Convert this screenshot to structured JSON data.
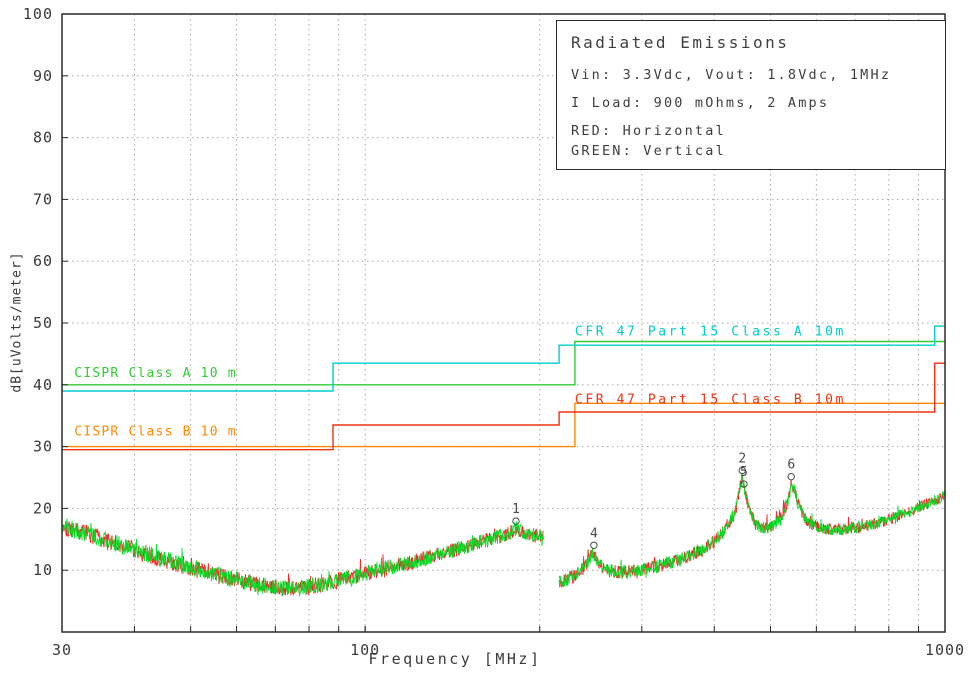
{
  "chart_data": {
    "type": "line",
    "title": "Radiated Emissions",
    "xlabel": "Frequency [MHz]",
    "ylabel": "dB[uVolts/meter]",
    "x_scale": "log",
    "xlim": [
      30,
      1000
    ],
    "ylim": [
      0,
      100
    ],
    "x_major_ticks": [
      {
        "value": 30,
        "label": "30"
      },
      {
        "value": 100,
        "label": "100"
      },
      {
        "value": 1000,
        "label": "1000"
      }
    ],
    "x_grid": [
      40,
      50,
      60,
      70,
      80,
      90,
      100,
      200,
      300,
      400,
      500,
      600,
      700,
      800,
      900
    ],
    "y_ticks": [
      {
        "value": 10,
        "label": "10"
      },
      {
        "value": 20,
        "label": "20"
      },
      {
        "value": 30,
        "label": "30"
      },
      {
        "value": 40,
        "label": "40"
      },
      {
        "value": 50,
        "label": "50"
      },
      {
        "value": 60,
        "label": "60"
      },
      {
        "value": 70,
        "label": "70"
      },
      {
        "value": 80,
        "label": "80"
      },
      {
        "value": 90,
        "label": "90"
      },
      {
        "value": 100,
        "label": "100"
      }
    ],
    "grid_on": true,
    "colors": {
      "grid": "#a8a8a8",
      "axis": "#2a2a2a",
      "text": "#3a3a3a"
    },
    "info_box": {
      "title": "Radiated Emissions",
      "line_io": "Vin: 3.3Vdc, Vout: 1.8Vdc, 1MHz",
      "line_load": "I Load: 900 mOhms, 2 Amps",
      "line_red": "RED: Horizontal",
      "line_green": "GREEN: Vertical"
    },
    "limits": [
      {
        "name": "cispr-class-a",
        "label": "CISPR Class A 10 m",
        "color": "#33cc33",
        "label_spacing": 1.2,
        "label_pos": {
          "freq": 31.5,
          "db": 41.3
        },
        "points": [
          [
            30,
            40
          ],
          [
            230,
            40
          ],
          [
            230,
            47
          ],
          [
            1000,
            47
          ]
        ]
      },
      {
        "name": "cispr-class-b",
        "label": "CISPR Class B 10 m",
        "color": "#ff8800",
        "label_spacing": 1.2,
        "label_pos": {
          "freq": 31.5,
          "db": 31.8
        },
        "points": [
          [
            30,
            30
          ],
          [
            230,
            30
          ],
          [
            230,
            37
          ],
          [
            1000,
            37
          ]
        ]
      },
      {
        "name": "cfr-47-part-15-class-a",
        "label": "CFR 47 Part 15  Class A 10m",
        "color": "#00cccc",
        "label_spacing": 2.6,
        "label_pos": {
          "freq": 230,
          "db": 48.0
        },
        "points": [
          [
            30,
            39
          ],
          [
            88,
            39
          ],
          [
            88,
            43.5
          ],
          [
            216,
            43.5
          ],
          [
            216,
            46.4
          ],
          [
            960,
            46.4
          ],
          [
            960,
            49.5
          ],
          [
            1000,
            49.5
          ]
        ]
      },
      {
        "name": "cfr-47-part-15-class-b",
        "label": "CFR 47 Part 15  Class B 10m",
        "color": "#ee3311",
        "label_spacing": 2.6,
        "label_pos": {
          "freq": 230,
          "db": 37.0
        },
        "points": [
          [
            30,
            29.5
          ],
          [
            88,
            29.5
          ],
          [
            88,
            33.5
          ],
          [
            216,
            33.5
          ],
          [
            216,
            35.6
          ],
          [
            960,
            35.6
          ],
          [
            960,
            43.5
          ],
          [
            1000,
            43.5
          ]
        ]
      }
    ],
    "traces": [
      {
        "name": "Horizontal",
        "color": "#ee2222",
        "seed": 101
      },
      {
        "name": "Vertical",
        "color": "#00dd22",
        "seed": 57
      }
    ],
    "trace_segments": [
      [
        30,
        203
      ],
      [
        216,
        1000
      ]
    ],
    "trace_noise_db": 1.1,
    "trace_envelope": [
      [
        30,
        17.2
      ],
      [
        33,
        15.9
      ],
      [
        36,
        14.7
      ],
      [
        40,
        13.3
      ],
      [
        45,
        11.7
      ],
      [
        50,
        10.4
      ],
      [
        55,
        9.3
      ],
      [
        60,
        8.4
      ],
      [
        65,
        7.7
      ],
      [
        70,
        7.2
      ],
      [
        75,
        7.0
      ],
      [
        80,
        7.3
      ],
      [
        85,
        7.8
      ],
      [
        90,
        8.4
      ],
      [
        95,
        8.9
      ],
      [
        100,
        9.4
      ],
      [
        110,
        10.4
      ],
      [
        120,
        11.3
      ],
      [
        130,
        12.2
      ],
      [
        140,
        13.1
      ],
      [
        150,
        13.9
      ],
      [
        160,
        14.7
      ],
      [
        170,
        15.4
      ],
      [
        178,
        16.1
      ],
      [
        182,
        16.8
      ],
      [
        187,
        16.1
      ],
      [
        193,
        15.7
      ],
      [
        203,
        15.6
      ],
      [
        216,
        8.0
      ],
      [
        222,
        8.5
      ],
      [
        230,
        9.2
      ],
      [
        240,
        10.6
      ],
      [
        247,
        12.9
      ],
      [
        252,
        11.2
      ],
      [
        260,
        10.0
      ],
      [
        275,
        9.6
      ],
      [
        300,
        10.0
      ],
      [
        325,
        10.8
      ],
      [
        350,
        11.8
      ],
      [
        375,
        13.0
      ],
      [
        400,
        14.6
      ],
      [
        420,
        16.8
      ],
      [
        435,
        19.6
      ],
      [
        443,
        23.4
      ],
      [
        447,
        25.0
      ],
      [
        452,
        22.8
      ],
      [
        460,
        19.6
      ],
      [
        472,
        17.4
      ],
      [
        490,
        16.7
      ],
      [
        505,
        17.1
      ],
      [
        520,
        18.3
      ],
      [
        535,
        21.0
      ],
      [
        543,
        24.0
      ],
      [
        549,
        23.4
      ],
      [
        557,
        21.0
      ],
      [
        570,
        18.7
      ],
      [
        590,
        17.3
      ],
      [
        620,
        16.7
      ],
      [
        650,
        16.5
      ],
      [
        690,
        16.8
      ],
      [
        730,
        17.2
      ],
      [
        770,
        17.7
      ],
      [
        810,
        18.3
      ],
      [
        850,
        19.1
      ],
      [
        890,
        19.9
      ],
      [
        930,
        20.7
      ],
      [
        965,
        21.4
      ],
      [
        1000,
        22.1
      ]
    ],
    "peaks": [
      {
        "label": "1",
        "freq": 182,
        "db": 16.8
      },
      {
        "label": "4",
        "freq": 248,
        "db": 12.9
      },
      {
        "label": "2",
        "freq": 447,
        "db": 25.0
      },
      {
        "label": "5",
        "freq": 450,
        "db": 22.8
      },
      {
        "label": "6",
        "freq": 543,
        "db": 24.0
      }
    ]
  }
}
